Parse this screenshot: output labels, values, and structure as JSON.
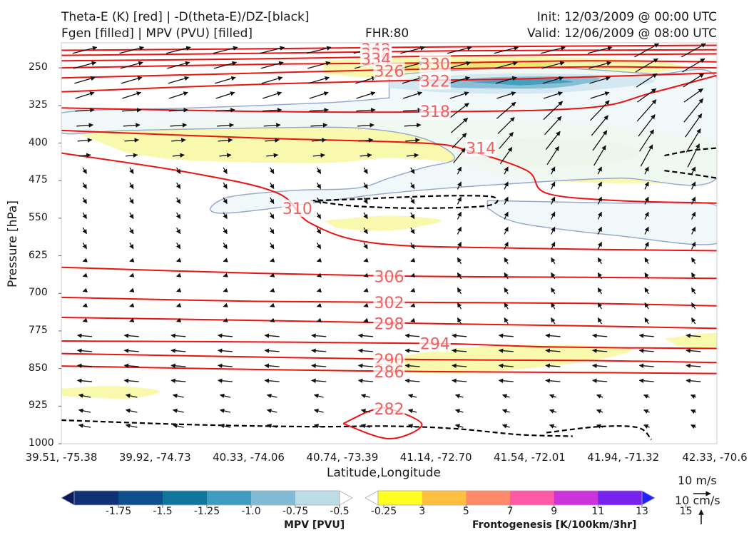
{
  "header": {
    "title_line1": "Theta-E (K) [red] | -D(theta-E)/DZ-[black]",
    "title_line2": "Fgen [filled] | MPV (PVU) [filled]",
    "fhr": "FHR:80",
    "init": "Init: 12/03/2009 @ 00:00 UTC",
    "valid": "Valid: 12/06/2009 @ 08:00 UTC"
  },
  "colors": {
    "theta_e": "#ee1111",
    "label": "#f06060",
    "stability": "#000000",
    "mpv_outline": "#9aaacc",
    "fgen_low": "#f8f8a0",
    "fgen_mid": "#e8e868"
  },
  "chart_data": {
    "type": "cross-section",
    "xlabel": "Latitude,Longitude",
    "ylabel": "Pressure [hPa]",
    "x_ticks": [
      "39.51, -75.38",
      "39.92, -74.73",
      "40.33, -74.06",
      "40.74, -73.39",
      "41.14, -72.70",
      "41.54, -72.01",
      "41.94, -71.32",
      "42.33, -70.6"
    ],
    "y_ticks": [
      250,
      325,
      400,
      475,
      550,
      625,
      700,
      775,
      850,
      925,
      1000
    ],
    "y_range": [
      200,
      1000
    ],
    "theta_e_contours": [
      {
        "value": 342,
        "label": "342",
        "points": [
          [
            0,
            215
          ],
          [
            0.3,
            212
          ],
          [
            0.6,
            208
          ],
          [
            1,
            205
          ]
        ]
      },
      {
        "value": 338,
        "label": "338",
        "points": [
          [
            0,
            225
          ],
          [
            0.3,
            221
          ],
          [
            0.6,
            216
          ],
          [
            1,
            214
          ]
        ]
      },
      {
        "value": 334,
        "label": "334",
        "points": [
          [
            0,
            236
          ],
          [
            0.3,
            232
          ],
          [
            0.6,
            226
          ],
          [
            1,
            222
          ]
        ]
      },
      {
        "value": 330,
        "label": "330",
        "points": [
          [
            0,
            250
          ],
          [
            0.3,
            243
          ],
          [
            0.58,
            240
          ],
          [
            0.8,
            236
          ],
          [
            1,
            238
          ]
        ]
      },
      {
        "value": 326,
        "label": "326",
        "points": [
          [
            0,
            270
          ],
          [
            0.25,
            262
          ],
          [
            0.5,
            254
          ],
          [
            0.8,
            248
          ],
          [
            1,
            250
          ]
        ]
      },
      {
        "value": 322,
        "label": "322",
        "points": [
          [
            0,
            298
          ],
          [
            0.25,
            285
          ],
          [
            0.5,
            276
          ],
          [
            0.7,
            272
          ],
          [
            1,
            260
          ]
        ]
      },
      {
        "value": 318,
        "label": "318",
        "points": [
          [
            0,
            330
          ],
          [
            0.3,
            337
          ],
          [
            0.55,
            338
          ],
          [
            0.8,
            330
          ],
          [
            0.9,
            300
          ],
          [
            1,
            265
          ]
        ]
      },
      {
        "value": 314,
        "label": "314",
        "points": [
          [
            0,
            375
          ],
          [
            0.3,
            390
          ],
          [
            0.55,
            400
          ],
          [
            0.62,
            415
          ],
          [
            0.71,
            455
          ],
          [
            0.74,
            500
          ],
          [
            0.85,
            515
          ],
          [
            1,
            520
          ]
        ]
      },
      {
        "value": 310,
        "label": "310",
        "points": [
          [
            0,
            420
          ],
          [
            0.2,
            460
          ],
          [
            0.33,
            500
          ],
          [
            0.38,
            560
          ],
          [
            0.48,
            600
          ],
          [
            0.7,
            610
          ],
          [
            1,
            615
          ]
        ]
      },
      {
        "value": 306,
        "label": "306",
        "points": [
          [
            0,
            648
          ],
          [
            0.3,
            660
          ],
          [
            0.55,
            666
          ],
          [
            0.8,
            668
          ],
          [
            1,
            670
          ]
        ]
      },
      {
        "value": 302,
        "label": "302",
        "points": [
          [
            0,
            708
          ],
          [
            0.3,
            716
          ],
          [
            0.55,
            718
          ],
          [
            0.8,
            720
          ],
          [
            1,
            725
          ]
        ]
      },
      {
        "value": 298,
        "label": "298",
        "points": [
          [
            0,
            748
          ],
          [
            0.3,
            754
          ],
          [
            0.55,
            760
          ],
          [
            0.8,
            765
          ],
          [
            1,
            770
          ]
        ]
      },
      {
        "value": 294,
        "label": "294",
        "points": [
          [
            0,
            795
          ],
          [
            0.3,
            797
          ],
          [
            0.57,
            800
          ],
          [
            0.75,
            807
          ],
          [
            1,
            810
          ]
        ]
      },
      {
        "value": 290,
        "label": "290",
        "points": [
          [
            0,
            820
          ],
          [
            0.3,
            827
          ],
          [
            0.55,
            832
          ],
          [
            0.8,
            834
          ],
          [
            1,
            838
          ]
        ]
      },
      {
        "value": 286,
        "label": "286",
        "points": [
          [
            0,
            845
          ],
          [
            0.3,
            852
          ],
          [
            0.55,
            856
          ],
          [
            0.8,
            858
          ],
          [
            1,
            860
          ]
        ]
      },
      {
        "value": 282,
        "label": "282",
        "points": [
          [
            0.43,
            960
          ],
          [
            0.47,
            935
          ],
          [
            0.5,
            930
          ],
          [
            0.55,
            962
          ],
          [
            0.5,
            990
          ],
          [
            0.43,
            960
          ]
        ]
      }
    ],
    "label_positions": [
      {
        "label": "342",
        "x": 0.48,
        "y": 213
      },
      {
        "label": "338",
        "x": 0.48,
        "y": 222
      },
      {
        "label": "334",
        "x": 0.48,
        "y": 232
      },
      {
        "label": "330",
        "x": 0.57,
        "y": 242
      },
      {
        "label": "326",
        "x": 0.5,
        "y": 256
      },
      {
        "label": "322",
        "x": 0.57,
        "y": 276
      },
      {
        "label": "318",
        "x": 0.57,
        "y": 337
      },
      {
        "label": "314",
        "x": 0.64,
        "y": 410
      },
      {
        "label": "310",
        "x": 0.36,
        "y": 530
      },
      {
        "label": "306",
        "x": 0.5,
        "y": 666
      },
      {
        "label": "302",
        "x": 0.5,
        "y": 718
      },
      {
        "label": "298",
        "x": 0.5,
        "y": 760
      },
      {
        "label": "294",
        "x": 0.57,
        "y": 800
      },
      {
        "label": "290",
        "x": 0.5,
        "y": 832
      },
      {
        "label": "286",
        "x": 0.5,
        "y": 856
      },
      {
        "label": "282",
        "x": 0.5,
        "y": 930
      }
    ],
    "stability_contours": [
      {
        "points": [
          [
            0.38,
            515
          ],
          [
            0.45,
            512
          ],
          [
            0.52,
            508
          ],
          [
            0.6,
            505
          ],
          [
            0.66,
            508
          ],
          [
            0.65,
            525
          ],
          [
            0.55,
            530
          ],
          [
            0.45,
            526
          ],
          [
            0.38,
            515
          ]
        ]
      },
      {
        "points": [
          [
            0,
            953
          ],
          [
            0.2,
            962
          ],
          [
            0.38,
            966
          ],
          [
            0.5,
            965
          ],
          [
            0.6,
            970
          ],
          [
            0.7,
            982
          ],
          [
            0.78,
            985
          ]
        ]
      },
      {
        "points": [
          [
            0.74,
            978
          ],
          [
            0.82,
            966
          ],
          [
            0.88,
            968
          ],
          [
            0.9,
            992
          ]
        ]
      },
      {
        "points": [
          [
            0.92,
            425
          ],
          [
            0.96,
            415
          ],
          [
            1,
            410
          ]
        ]
      },
      {
        "points": [
          [
            0.92,
            455
          ],
          [
            0.96,
            462
          ],
          [
            1,
            470
          ]
        ]
      }
    ],
    "mpv_regions": [
      {
        "value": -0.25,
        "points": [
          [
            0.5,
            265
          ],
          [
            0.6,
            255
          ],
          [
            0.75,
            250
          ],
          [
            0.9,
            262
          ],
          [
            1,
            270
          ],
          [
            1,
            470
          ],
          [
            0.85,
            470
          ],
          [
            0.7,
            480
          ],
          [
            0.5,
            500
          ],
          [
            0.25,
            540
          ],
          [
            0.25,
            510
          ],
          [
            0.35,
            495
          ],
          [
            0.45,
            490
          ],
          [
            0.5,
            470
          ],
          [
            0.55,
            450
          ],
          [
            0.6,
            430
          ],
          [
            0.55,
            390
          ],
          [
            0.45,
            370
          ],
          [
            0.3,
            370
          ],
          [
            0.1,
            375
          ],
          [
            0,
            380
          ],
          [
            0,
            340
          ],
          [
            0.2,
            330
          ],
          [
            0.4,
            320
          ],
          [
            0.5,
            310
          ]
        ]
      },
      {
        "value": -0.25,
        "points": [
          [
            0.65,
            515
          ],
          [
            0.85,
            520
          ],
          [
            1,
            525
          ],
          [
            1,
            600
          ],
          [
            0.85,
            585
          ],
          [
            0.7,
            560
          ],
          [
            0.65,
            530
          ]
        ]
      },
      {
        "value": -0.5,
        "points": [
          [
            0.5,
            275
          ],
          [
            0.65,
            262
          ],
          [
            0.85,
            265
          ],
          [
            0.9,
            280
          ],
          [
            0.75,
            300
          ],
          [
            0.6,
            300
          ],
          [
            0.5,
            290
          ]
        ]
      },
      {
        "value": -0.75,
        "points": [
          [
            0.55,
            278
          ],
          [
            0.68,
            268
          ],
          [
            0.82,
            270
          ],
          [
            0.75,
            290
          ],
          [
            0.6,
            290
          ]
        ]
      },
      {
        "value": -1.0,
        "points": [
          [
            0.62,
            278
          ],
          [
            0.72,
            272
          ],
          [
            0.78,
            278
          ],
          [
            0.7,
            285
          ]
        ]
      }
    ],
    "fgen_regions": [
      {
        "value": 3,
        "points": [
          [
            0.4,
            235
          ],
          [
            0.6,
            228
          ],
          [
            0.85,
            232
          ],
          [
            0.95,
            250
          ],
          [
            0.8,
            268
          ],
          [
            0.55,
            275
          ],
          [
            0.4,
            262
          ]
        ]
      },
      {
        "value": 3,
        "points": [
          [
            0.02,
            378
          ],
          [
            0.2,
            358
          ],
          [
            0.4,
            352
          ],
          [
            0.6,
            355
          ],
          [
            0.8,
            362
          ],
          [
            0.92,
            382
          ],
          [
            1,
            400
          ],
          [
            1,
            470
          ],
          [
            0.85,
            480
          ],
          [
            0.7,
            470
          ],
          [
            0.6,
            440
          ],
          [
            0.5,
            430
          ],
          [
            0.4,
            440
          ],
          [
            0.2,
            435
          ],
          [
            0.1,
            420
          ]
        ]
      },
      {
        "value": 3,
        "points": [
          [
            0.4,
            555
          ],
          [
            0.5,
            545
          ],
          [
            0.58,
            555
          ],
          [
            0.5,
            575
          ],
          [
            0.42,
            570
          ]
        ]
      },
      {
        "value": 3,
        "points": [
          [
            0.5,
            830
          ],
          [
            0.6,
            810
          ],
          [
            0.75,
            803
          ],
          [
            0.87,
            812
          ],
          [
            0.78,
            840
          ],
          [
            0.6,
            860
          ],
          [
            0.5,
            855
          ]
        ]
      },
      {
        "value": 3,
        "points": [
          [
            0.92,
            790
          ],
          [
            1,
            780
          ],
          [
            1,
            810
          ],
          [
            0.94,
            805
          ]
        ]
      },
      {
        "value": 3,
        "points": [
          [
            0,
            890
          ],
          [
            0.08,
            885
          ],
          [
            0.15,
            895
          ],
          [
            0.1,
            910
          ],
          [
            0,
            905
          ]
        ]
      },
      {
        "value": 5,
        "points": [
          [
            0.6,
            400
          ],
          [
            0.72,
            390
          ],
          [
            0.85,
            400
          ],
          [
            0.88,
            425
          ],
          [
            0.8,
            445
          ],
          [
            0.68,
            445
          ],
          [
            0.62,
            425
          ]
        ]
      },
      {
        "value": 5,
        "points": [
          [
            0.48,
            245
          ],
          [
            0.6,
            238
          ],
          [
            0.75,
            240
          ],
          [
            0.7,
            252
          ],
          [
            0.55,
            255
          ]
        ]
      }
    ],
    "vector_key": {
      "horizontal": "10 m/s",
      "vertical": "10 cm/s"
    },
    "colorbar_mpv": {
      "title": "MPV [PVU]",
      "ticks": [
        "-1.75",
        "-1.5",
        "-1.25",
        "-1.0",
        "-0.75",
        "-0.5",
        "-0.25"
      ],
      "colors": [
        "#0a1a5c",
        "#0e3275",
        "#0d4f8c",
        "#11769c",
        "#3d9cbf",
        "#80bad4",
        "#bcdce6",
        "#ffffff"
      ]
    },
    "colorbar_fgen": {
      "title": "Frontogenesis [K/100km/3hr]",
      "ticks": [
        "3",
        "5",
        "7",
        "9",
        "11",
        "13",
        "15"
      ],
      "colors": [
        "#ffffff",
        "#ffff22",
        "#ffc040",
        "#ff8a6a",
        "#ff58a8",
        "#cc33dd",
        "#7722ee",
        "#2222ff"
      ]
    }
  }
}
